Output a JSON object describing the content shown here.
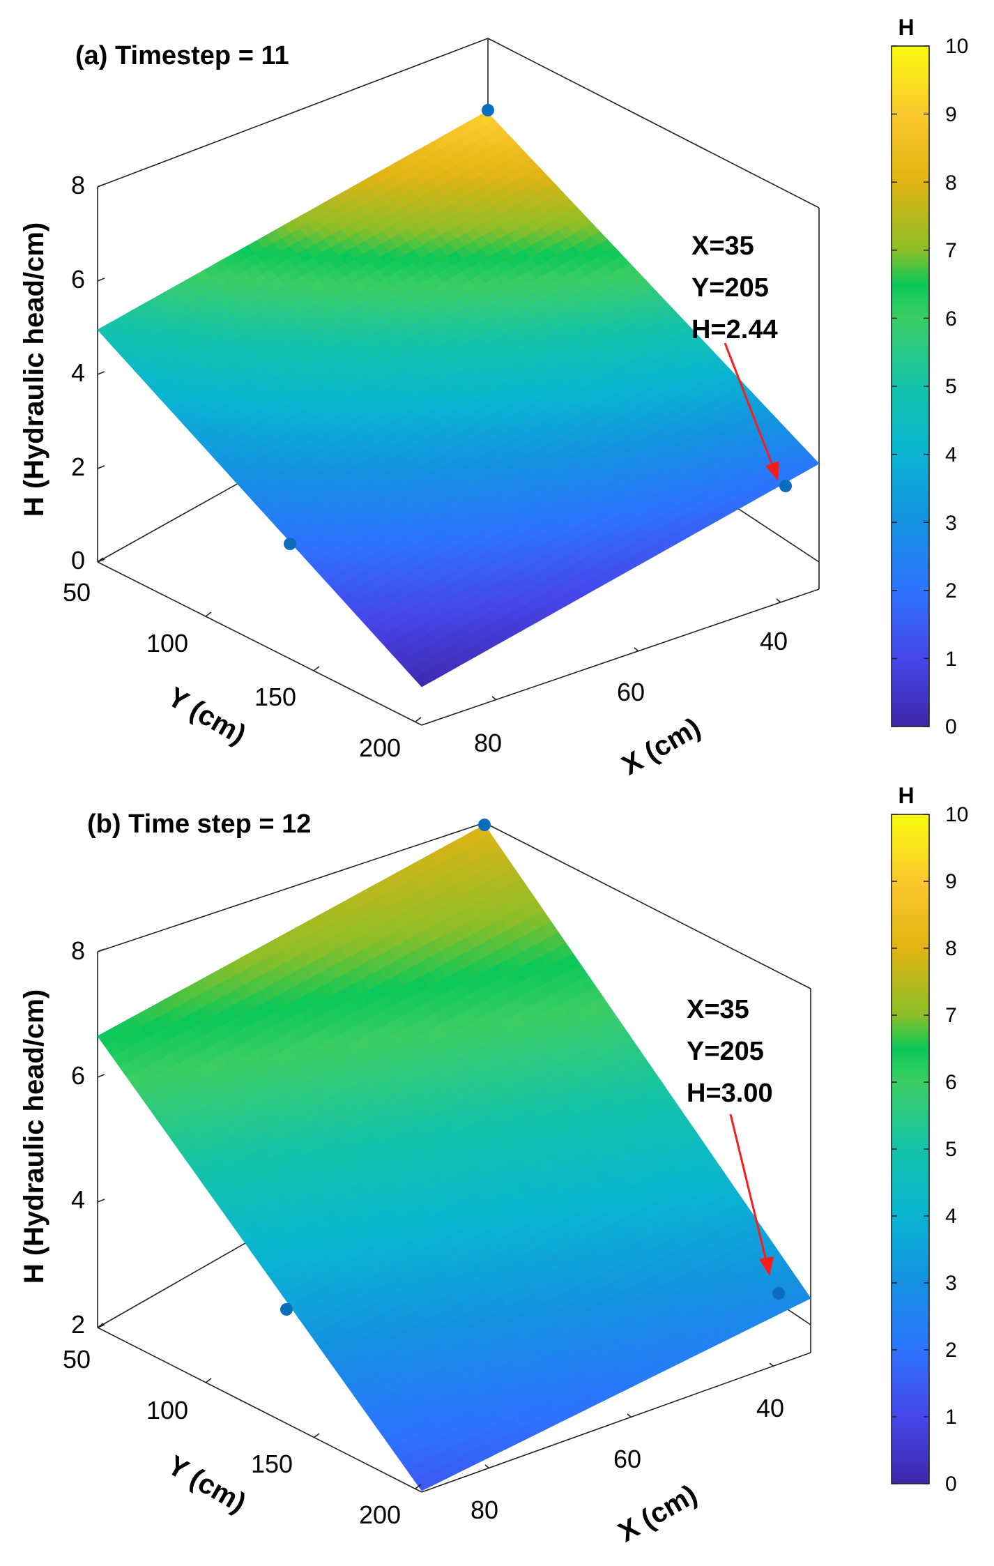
{
  "chart_data": [
    {
      "type": "surface",
      "title": "(a) Timestep = 11",
      "xlabel": "X (cm)",
      "ylabel": "Y (cm)",
      "zlabel": "H (Hydraulic head/cm)",
      "x_ticks": [
        "40",
        "60",
        "80"
      ],
      "y_ticks": [
        "50",
        "100",
        "150",
        "200"
      ],
      "z_ticks": [
        "0",
        "2",
        "4",
        "6",
        "8"
      ],
      "zlim": [
        0,
        8
      ],
      "corner_values_H": [
        9.3,
        4.9,
        0.1,
        2.2
      ],
      "points": [
        {
          "H": 9.7
        },
        {
          "H": 0.4
        },
        {
          "H": 2.44
        }
      ],
      "annotation": {
        "lines": [
          "X=35",
          "Y=205",
          "H=2.44"
        ]
      },
      "colorbar": {
        "label": "H",
        "ticks": [
          "0",
          "1",
          "2",
          "3",
          "4",
          "5",
          "6",
          "7",
          "8",
          "9",
          "10"
        ],
        "range": [
          0,
          10
        ]
      }
    },
    {
      "type": "surface",
      "title": "(b) Time step = 12",
      "xlabel": "X (cm)",
      "ylabel": "Y (cm)",
      "zlabel": "H (Hydraulic head/cm)",
      "x_ticks": [
        "40",
        "60",
        "80"
      ],
      "y_ticks": [
        "50",
        "100",
        "150",
        "200"
      ],
      "z_ticks": [
        "2",
        "4",
        "6",
        "8"
      ],
      "zlim": [
        2,
        8
      ],
      "corner_values_H": [
        8.0,
        6.5,
        1.4,
        2.8
      ],
      "points": [
        {
          "H": 10.0
        },
        {
          "H": 2.0
        },
        {
          "H": 3.0
        }
      ],
      "annotation": {
        "lines": [
          "X=35",
          "Y=205",
          "H=3.00"
        ]
      },
      "colorbar": {
        "label": "H",
        "ticks": [
          "0",
          "1",
          "2",
          "3",
          "4",
          "5",
          "6",
          "7",
          "8",
          "9",
          "10"
        ],
        "range": [
          0,
          10
        ]
      }
    }
  ]
}
